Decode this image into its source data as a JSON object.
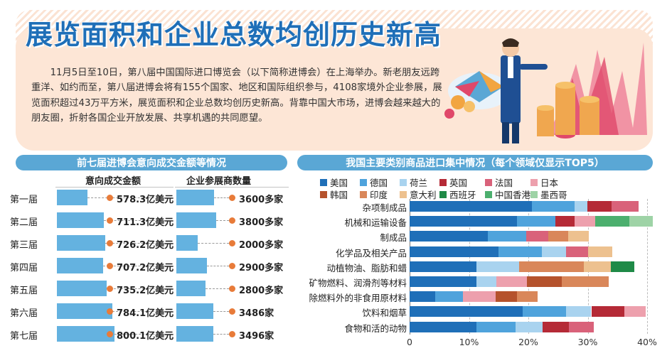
{
  "header": {
    "title": "展览面积和企业总数均创历史新高",
    "intro": "11月5日至10日，第八届中国国际进口博览会（以下简称进博会）在上海举办。新老朋友远跨重洋、如约而至，第八届进博会将有155个国家、地区和国际组织参与，4108家境外企业参展，展览面积超过43万平方米，展览面积和企业总数均创历史新高。背靠中国大市场，进博会越来越大的朋友圈，折射各国企业开放发展、共享机遇的共同愿望。"
  },
  "left_panel": {
    "section_title": "前七届进博会意向成交金额等情况",
    "col1_title": "意向成交金额",
    "col2_title": "企业参展商数量"
  },
  "right_panel": {
    "section_title": "我国主要类别商品进口集中情况（每个领域仅显示TOP5）"
  },
  "colors": {
    "accent": "#1f6fb8",
    "section": "#5aa7d5",
    "bar": "#64b2e0",
    "dot": "#e87b39"
  },
  "chart_data": [
    {
      "type": "bar",
      "orientation": "horizontal",
      "categories": [
        "第一届",
        "第二届",
        "第三届",
        "第四届",
        "第五届",
        "第六届",
        "第七届"
      ],
      "series": [
        {
          "name": "意向成交金额",
          "values": [
            578.3,
            711.3,
            726.2,
            707.2,
            735.2,
            784.1,
            800.1
          ],
          "labels": [
            "578.3亿美元",
            "711.3亿美元",
            "726.2亿美元",
            "707.2亿美元",
            "735.2亿美元",
            "784.1亿美元",
            "800.1亿美元"
          ]
        },
        {
          "name": "企业参展商数量",
          "values": [
            3600,
            3800,
            2000,
            2900,
            2800,
            3486,
            3496
          ],
          "labels": [
            "3600多家",
            "3800多家",
            "2000多家",
            "2900多家",
            "2800多家",
            "3486家",
            "3496家"
          ]
        }
      ]
    },
    {
      "type": "bar",
      "orientation": "horizontal",
      "stacked": true,
      "xlim": [
        0,
        40
      ],
      "x_ticks": [
        "0",
        "10%",
        "20%",
        "30%",
        "40%"
      ],
      "legend_position": "top",
      "legend": [
        {
          "name": "美国",
          "color": "#1f6fb8"
        },
        {
          "name": "德国",
          "color": "#4fa3dc"
        },
        {
          "name": "荷兰",
          "color": "#a9d3ef"
        },
        {
          "name": "英国",
          "color": "#b52a36"
        },
        {
          "name": "法国",
          "color": "#d9627a"
        },
        {
          "name": "日本",
          "color": "#eda0ad"
        },
        {
          "name": "韩国",
          "color": "#b5522c"
        },
        {
          "name": "印度",
          "color": "#d9875a"
        },
        {
          "name": "意大利",
          "color": "#edc18f"
        },
        {
          "name": "西班牙",
          "color": "#1f8a47"
        },
        {
          "name": "中国香港",
          "color": "#4caf6e"
        },
        {
          "name": "墨西哥",
          "color": "#9ed3a6"
        }
      ],
      "categories": [
        "杂项制成品",
        "机械和运输设备",
        "制成品",
        "化学品及相关产品",
        "动植物油、脂肪和蜡",
        "矿物燃料、润滑剂等材料",
        "除燃料外的非食用原材料",
        "饮料和烟草",
        "食物和活的动物"
      ],
      "rows": [
        [
          {
            "s": "美国",
            "v": 20.6
          },
          {
            "s": "德国",
            "v": 7.2
          },
          {
            "s": "荷兰",
            "v": 2.1
          },
          {
            "s": "英国",
            "v": 4.1
          },
          {
            "s": "法国",
            "v": 4.6
          }
        ],
        [
          {
            "s": "美国",
            "v": 18.1
          },
          {
            "s": "德国",
            "v": 6.5
          },
          {
            "s": "英国",
            "v": 3.2
          },
          {
            "s": "日本",
            "v": 3.4
          },
          {
            "s": "中国香港",
            "v": 5.8
          },
          {
            "s": "墨西哥",
            "v": 3.9
          }
        ],
        [
          {
            "s": "美国",
            "v": 13.2
          },
          {
            "s": "德国",
            "v": 6.5
          },
          {
            "s": "法国",
            "v": 3.6
          },
          {
            "s": "印度",
            "v": 3.4
          },
          {
            "s": "意大利",
            "v": 3.5
          }
        ],
        [
          {
            "s": "美国",
            "v": 15.0
          },
          {
            "s": "德国",
            "v": 7.3
          },
          {
            "s": "荷兰",
            "v": 4.1
          },
          {
            "s": "法国",
            "v": 3.7
          },
          {
            "s": "意大利",
            "v": 4.0
          }
        ],
        [
          {
            "s": "美国",
            "v": 11.3
          },
          {
            "s": "荷兰",
            "v": 7.2
          },
          {
            "s": "印度",
            "v": 10.9
          },
          {
            "s": "意大利",
            "v": 4.5
          },
          {
            "s": "西班牙",
            "v": 4.0
          }
        ],
        [
          {
            "s": "美国",
            "v": 11.3
          },
          {
            "s": "荷兰",
            "v": 3.3
          },
          {
            "s": "日本",
            "v": 5.2
          },
          {
            "s": "韩国",
            "v": 5.8
          },
          {
            "s": "印度",
            "v": 7.9
          }
        ],
        [
          {
            "s": "美国",
            "v": 4.3
          },
          {
            "s": "德国",
            "v": 4.7
          },
          {
            "s": "日本",
            "v": 5.5
          },
          {
            "s": "韩国",
            "v": 3.6
          },
          {
            "s": "印度",
            "v": 3.5
          }
        ],
        [
          {
            "s": "美国",
            "v": 19.1
          },
          {
            "s": "德国",
            "v": 7.2
          },
          {
            "s": "荷兰",
            "v": 4.3
          },
          {
            "s": "英国",
            "v": 5.6
          },
          {
            "s": "日本",
            "v": 3.6
          }
        ],
        [
          {
            "s": "美国",
            "v": 11.2
          },
          {
            "s": "德国",
            "v": 6.6
          },
          {
            "s": "荷兰",
            "v": 4.6
          },
          {
            "s": "英国",
            "v": 4.4
          },
          {
            "s": "法国",
            "v": 4.2
          }
        ]
      ]
    }
  ]
}
